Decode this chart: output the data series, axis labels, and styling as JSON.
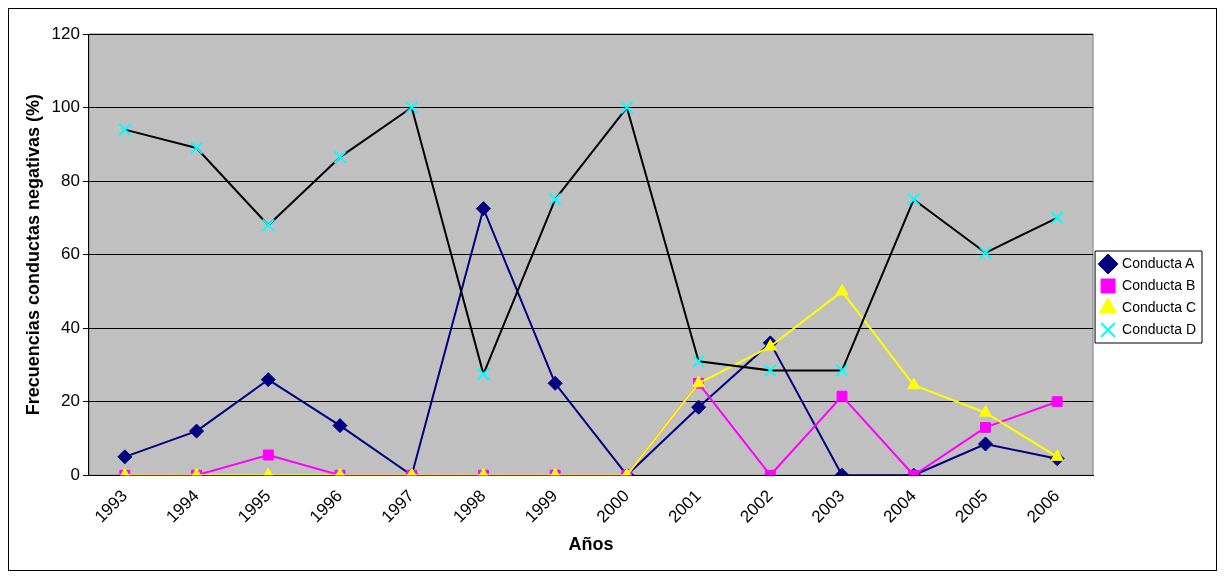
{
  "chart_data": {
    "type": "line",
    "xlabel": "Años",
    "ylabel": "Frecuencias conductas negativas (%)",
    "categories": [
      "1993",
      "1994",
      "1995",
      "1996",
      "1997",
      "1998",
      "1999",
      "2000",
      "2001",
      "2002",
      "2003",
      "2004",
      "2005",
      "2006"
    ],
    "series": [
      {
        "name": "Conducta A",
        "color": "#000080",
        "marker": "diamond",
        "values": [
          5,
          12,
          26,
          13.5,
          0,
          72.5,
          25,
          0,
          18.5,
          36,
          0,
          0,
          8.5,
          4.5
        ]
      },
      {
        "name": "Conducta B",
        "color": "#ff00ff",
        "marker": "square",
        "values": [
          0,
          0,
          5.5,
          0,
          0,
          0,
          0,
          0,
          25,
          0,
          21.5,
          0,
          13,
          20
        ]
      },
      {
        "name": "Conducta C",
        "color": "#ffff00",
        "marker": "triangle",
        "values": [
          0,
          0,
          0,
          0,
          0,
          0,
          0,
          0,
          25,
          35,
          50,
          24.5,
          17,
          5
        ]
      },
      {
        "name": "Conducta D",
        "color": "#00ffff",
        "marker": "cross",
        "values": [
          94,
          89,
          68,
          86.5,
          100,
          27.5,
          75,
          100,
          31,
          28.5,
          28.5,
          75,
          60.5,
          70
        ]
      }
    ],
    "ylim": [
      0,
      120
    ],
    "yticks": [
      0,
      20,
      40,
      60,
      80,
      100,
      120
    ],
    "grid": "y",
    "legend": "right"
  }
}
